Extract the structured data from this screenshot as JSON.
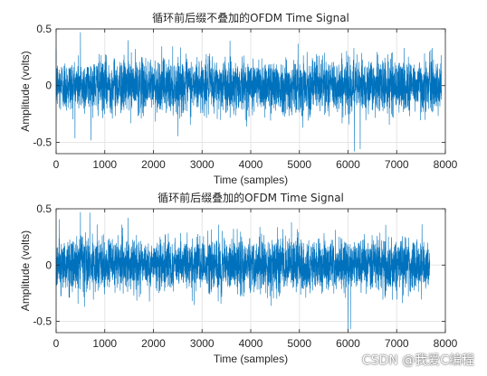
{
  "chart_data": [
    {
      "type": "line",
      "title": "循环前后缀不叠加的OFDM Time Signal",
      "xlabel": "Time (samples)",
      "ylabel": "Amplitude (volts)",
      "xlim": [
        0,
        8000
      ],
      "ylim": [
        -0.6,
        0.5
      ],
      "xticks": [
        0,
        1000,
        2000,
        3000,
        4000,
        5000,
        6000,
        7000,
        8000
      ],
      "yticks": [
        -0.5,
        0,
        0.5
      ],
      "grid": true,
      "series_color": "#0072BD",
      "n_samples": 7920,
      "typical_range": [
        -0.3,
        0.3
      ],
      "peaks": [
        {
          "x": 500,
          "y": 0.47
        },
        {
          "x": 1480,
          "y": 0.4
        },
        {
          "x": 6130,
          "y": -0.58
        },
        {
          "x": 6250,
          "y": -0.56
        }
      ]
    },
    {
      "type": "line",
      "title": "循环前后缀叠加的OFDM Time Signal",
      "xlabel": "Time (samples)",
      "ylabel": "Amplitude (volts)",
      "xlim": [
        0,
        8000
      ],
      "ylim": [
        -0.6,
        0.5
      ],
      "xticks": [
        0,
        1000,
        2000,
        3000,
        4000,
        5000,
        6000,
        7000,
        8000
      ],
      "yticks": [
        -0.5,
        0,
        0.5
      ],
      "grid": true,
      "series_color": "#0072BD",
      "n_samples": 7680,
      "typical_range": [
        -0.3,
        0.3
      ],
      "peaks": [
        {
          "x": 500,
          "y": 0.47
        },
        {
          "x": 1480,
          "y": 0.42
        },
        {
          "x": 6000,
          "y": -0.58
        },
        {
          "x": 6050,
          "y": -0.57
        }
      ]
    }
  ],
  "watermark": "CSDN @我爱C编程"
}
